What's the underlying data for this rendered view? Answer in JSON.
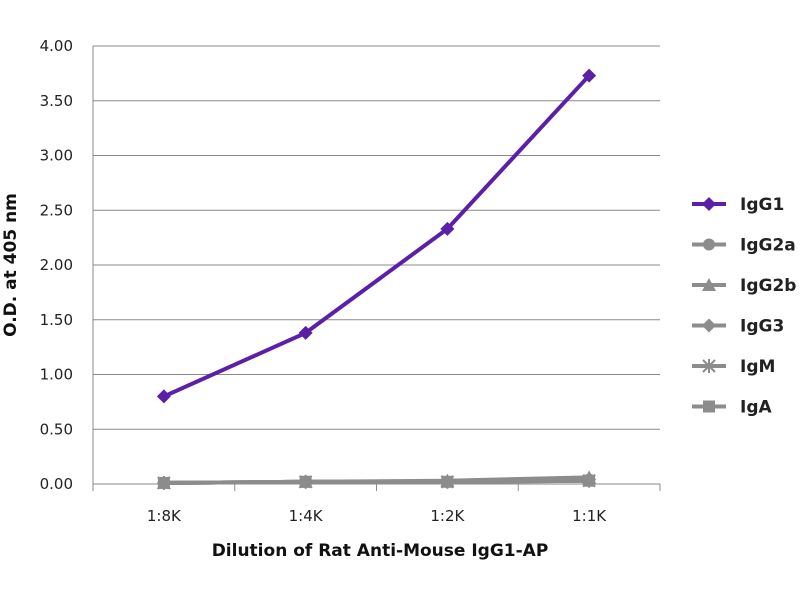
{
  "chart_data": {
    "type": "line",
    "title": "",
    "xlabel": "Dilution of Rat Anti-Mouse IgG1-AP",
    "ylabel": "O.D. at 405 nm",
    "categories": [
      "1:8K",
      "1:4K",
      "1:2K",
      "1:1K"
    ],
    "ylim": [
      0,
      4
    ],
    "yticks": [
      "0.00",
      "0.50",
      "1.00",
      "1.50",
      "2.00",
      "2.50",
      "3.00",
      "3.50",
      "4.00"
    ],
    "grid": true,
    "legend_position": "right",
    "series": [
      {
        "name": "IgG1",
        "values": [
          0.8,
          1.38,
          2.33,
          3.73
        ],
        "color": "#5b1fa8",
        "marker": "diamond"
      },
      {
        "name": "IgG2a",
        "values": [
          0.01,
          0.02,
          0.02,
          0.04
        ],
        "color": "#8c8c8c",
        "marker": "circle"
      },
      {
        "name": "IgG2b",
        "values": [
          0.01,
          0.02,
          0.03,
          0.06
        ],
        "color": "#8c8c8c",
        "marker": "triangle"
      },
      {
        "name": "IgG3",
        "values": [
          0.01,
          0.02,
          0.02,
          0.04
        ],
        "color": "#8c8c8c",
        "marker": "diamond"
      },
      {
        "name": "IgM",
        "values": [
          0.01,
          0.02,
          0.02,
          0.03
        ],
        "color": "#8c8c8c",
        "marker": "star"
      },
      {
        "name": "IgA",
        "values": [
          0.01,
          0.02,
          0.02,
          0.03
        ],
        "color": "#8c8c8c",
        "marker": "square"
      }
    ]
  }
}
